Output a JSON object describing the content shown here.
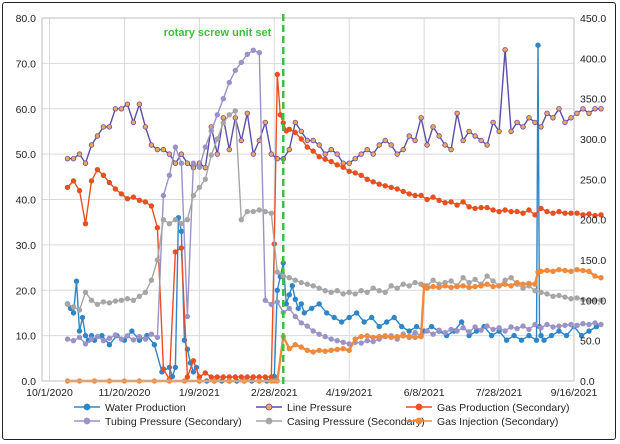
{
  "chart_data": {
    "type": "line",
    "title": "",
    "xlabel": "",
    "ylabel_left": "",
    "ylabel_right": "",
    "ylim_left": [
      0,
      80
    ],
    "ylim_right": [
      0,
      450
    ],
    "xlim_days": [
      -5,
      350
    ],
    "x_epoch": "10/1/2020",
    "y_ticks_left": [
      "0.0",
      "10.0",
      "20.0",
      "30.0",
      "40.0",
      "50.0",
      "60.0",
      "70.0",
      "80.0"
    ],
    "y_ticks_right": [
      "0.0",
      "50.0",
      "100.0",
      "150.0",
      "200.0",
      "250.0",
      "300.0",
      "350.0",
      "400.0",
      "450.0"
    ],
    "x_ticks": [
      {
        "label": "10/1/2020",
        "day": 0
      },
      {
        "label": "11/20/2020",
        "day": 50
      },
      {
        "label": "1/9/2021",
        "day": 100
      },
      {
        "label": "2/28/2021",
        "day": 150
      },
      {
        "label": "4/19/2021",
        "day": 200
      },
      {
        "label": "6/8/2021",
        "day": 250
      },
      {
        "label": "7/28/2021",
        "day": 300
      },
      {
        "label": "9/16/2021",
        "day": 350
      }
    ],
    "annotation": {
      "text": "rotary screw unit set",
      "day": 156
    },
    "series": [
      {
        "name": "Water Production",
        "axis": "left",
        "color": "#2e86c8",
        "marker": "circle",
        "x": [
          12,
          14,
          16,
          18,
          20,
          22,
          24,
          26,
          28,
          30,
          35,
          40,
          45,
          50,
          55,
          60,
          65,
          70,
          75,
          80,
          82,
          84,
          86,
          88,
          90,
          92,
          94,
          96,
          98,
          100,
          105,
          110,
          115,
          120,
          125,
          130,
          135,
          140,
          145,
          150,
          152,
          154,
          156,
          158,
          160,
          162,
          164,
          166,
          168,
          170,
          175,
          180,
          185,
          190,
          195,
          200,
          205,
          210,
          215,
          220,
          225,
          230,
          235,
          240,
          245,
          250,
          255,
          260,
          265,
          270,
          275,
          280,
          285,
          290,
          295,
          300,
          305,
          310,
          315,
          320,
          325,
          326,
          327,
          328,
          330,
          335,
          340,
          345,
          350,
          355,
          360,
          365
        ],
        "y": [
          17,
          16,
          15,
          22,
          11,
          14,
          10,
          9,
          10,
          9,
          10,
          8,
          10,
          9,
          11,
          9,
          10,
          8,
          2,
          3,
          1,
          3,
          36,
          33,
          9,
          7,
          4,
          2,
          3,
          0,
          0,
          0,
          0,
          0,
          0,
          0,
          0,
          0,
          0,
          1,
          20,
          23,
          26,
          17,
          19,
          21,
          18,
          16,
          17,
          15,
          16,
          17,
          15,
          14,
          13,
          14,
          15,
          13,
          14,
          12,
          13,
          14,
          12,
          11,
          12,
          11,
          12,
          11,
          10,
          11,
          13,
          10,
          11,
          12,
          10,
          11,
          9,
          10,
          9,
          10,
          9,
          74,
          12,
          10,
          9,
          10,
          11,
          10,
          12,
          10,
          11,
          12
        ]
      },
      {
        "name": "Line Pressure",
        "axis": "left",
        "color": "#5a4fa8",
        "marker": "circle-orange",
        "x": [
          12,
          16,
          20,
          24,
          28,
          32,
          36,
          40,
          44,
          48,
          52,
          56,
          60,
          64,
          68,
          72,
          76,
          80,
          84,
          88,
          92,
          96,
          100,
          104,
          108,
          112,
          116,
          120,
          124,
          128,
          132,
          136,
          140,
          144,
          148,
          152,
          156,
          160,
          164,
          168,
          172,
          176,
          180,
          184,
          188,
          192,
          196,
          200,
          204,
          208,
          212,
          216,
          220,
          224,
          228,
          232,
          236,
          240,
          244,
          248,
          252,
          256,
          260,
          264,
          268,
          272,
          276,
          280,
          284,
          288,
          292,
          296,
          300,
          304,
          308,
          312,
          316,
          320,
          324,
          328,
          332,
          336,
          340,
          344,
          348,
          352,
          356,
          360,
          364,
          368
        ],
        "y": [
          49,
          49,
          50,
          48,
          52,
          54,
          56,
          56,
          60,
          60,
          61,
          57,
          61,
          56,
          52,
          51,
          51,
          50,
          48,
          50,
          48,
          47,
          48,
          47,
          56,
          50,
          58,
          51,
          58,
          53,
          59,
          50,
          53,
          57,
          50,
          49,
          49,
          51,
          57,
          55,
          53,
          53,
          52,
          50,
          51,
          50,
          48,
          48,
          49,
          50,
          51,
          50,
          52,
          53,
          52,
          50,
          51,
          54,
          53,
          58,
          52,
          56,
          54,
          52,
          51,
          59,
          53,
          55,
          54,
          53,
          52,
          57,
          55,
          73,
          55,
          57,
          56,
          58,
          57,
          56,
          59,
          58,
          60,
          57,
          58,
          59,
          60,
          59,
          60,
          60
        ]
      },
      {
        "name": "Gas Production (Secondary)",
        "axis": "right",
        "color": "#e84f22",
        "marker": "circle",
        "x": [
          12,
          16,
          20,
          24,
          28,
          32,
          36,
          40,
          44,
          48,
          52,
          56,
          60,
          64,
          68,
          72,
          76,
          80,
          84,
          88,
          92,
          96,
          100,
          104,
          108,
          112,
          116,
          120,
          124,
          128,
          132,
          136,
          140,
          144,
          148,
          150,
          152,
          154,
          156,
          158,
          160,
          164,
          168,
          172,
          176,
          180,
          184,
          188,
          192,
          196,
          200,
          204,
          208,
          212,
          216,
          220,
          224,
          228,
          232,
          236,
          240,
          244,
          248,
          252,
          256,
          260,
          264,
          268,
          272,
          276,
          280,
          284,
          288,
          292,
          296,
          300,
          304,
          308,
          312,
          316,
          320,
          324,
          328,
          332,
          336,
          340,
          344,
          348,
          352,
          356,
          360,
          364,
          368
        ],
        "y": [
          240,
          248,
          236,
          195,
          248,
          262,
          255,
          246,
          238,
          232,
          226,
          228,
          224,
          222,
          217,
          190,
          15,
          2,
          160,
          165,
          5,
          25,
          5,
          10,
          5,
          5,
          5,
          5,
          5,
          5,
          5,
          5,
          5,
          5,
          5,
          170,
          380,
          330,
          320,
          310,
          312,
          308,
          300,
          290,
          285,
          278,
          275,
          272,
          268,
          265,
          260,
          258,
          255,
          250,
          247,
          244,
          242,
          240,
          238,
          235,
          232,
          230,
          230,
          225,
          228,
          224,
          221,
          222,
          218,
          222,
          216,
          214,
          215,
          215,
          212,
          210,
          212,
          210,
          210,
          208,
          212,
          206,
          214,
          210,
          208,
          210,
          208,
          208,
          208,
          206,
          207,
          205,
          206
        ]
      },
      {
        "name": "Tubing Pressure (Secondary)",
        "axis": "right",
        "color": "#9a93c7",
        "marker": "circle",
        "x": [
          12,
          16,
          20,
          24,
          28,
          32,
          36,
          40,
          44,
          48,
          52,
          56,
          60,
          64,
          68,
          72,
          76,
          80,
          84,
          88,
          92,
          96,
          100,
          104,
          108,
          112,
          116,
          120,
          124,
          128,
          132,
          136,
          140,
          144,
          148,
          152,
          156,
          160,
          164,
          168,
          172,
          176,
          180,
          184,
          188,
          192,
          196,
          200,
          204,
          208,
          212,
          216,
          220,
          224,
          228,
          232,
          236,
          240,
          244,
          248,
          252,
          256,
          260,
          264,
          268,
          272,
          276,
          280,
          284,
          288,
          292,
          296,
          300,
          304,
          308,
          312,
          316,
          320,
          324,
          328,
          332,
          336,
          340,
          344,
          348,
          352,
          356,
          360,
          364,
          368
        ],
        "y": [
          52,
          50,
          54,
          46,
          52,
          55,
          50,
          53,
          57,
          52,
          56,
          51,
          55,
          52,
          58,
          54,
          230,
          255,
          290,
          270,
          80,
          270,
          265,
          290,
          310,
          330,
          350,
          370,
          385,
          395,
          405,
          410,
          407,
          100,
          95,
          98,
          85,
          90,
          80,
          72,
          68,
          62,
          58,
          55,
          52,
          50,
          48,
          46,
          48,
          47,
          50,
          49,
          52,
          55,
          56,
          52,
          58,
          54,
          60,
          56,
          62,
          58,
          63,
          60,
          64,
          62,
          66,
          61,
          67,
          63,
          68,
          64,
          66,
          62,
          67,
          65,
          68,
          64,
          70,
          66,
          70,
          67,
          68,
          69,
          70,
          69,
          71,
          70,
          72,
          70
        ]
      },
      {
        "name": "Casing Pressure (Secondary)",
        "axis": "right",
        "color": "#a6a6a6",
        "marker": "circle",
        "x": [
          12,
          16,
          20,
          24,
          28,
          32,
          36,
          40,
          44,
          48,
          52,
          56,
          60,
          64,
          68,
          72,
          76,
          80,
          84,
          88,
          92,
          96,
          100,
          104,
          108,
          112,
          116,
          120,
          124,
          128,
          132,
          136,
          140,
          144,
          148,
          152,
          156,
          160,
          164,
          168,
          172,
          176,
          180,
          184,
          188,
          192,
          196,
          200,
          204,
          208,
          212,
          216,
          220,
          224,
          228,
          232,
          236,
          240,
          244,
          248,
          252,
          256,
          260,
          264,
          268,
          272,
          276,
          280,
          284,
          288,
          292,
          296,
          300,
          304,
          308,
          312,
          316,
          320,
          324,
          328,
          332,
          336,
          340,
          344,
          348,
          352,
          356,
          360,
          364,
          368
        ],
        "y": [
          95,
          92,
          88,
          110,
          100,
          95,
          98,
          97,
          99,
          100,
          102,
          100,
          105,
          110,
          125,
          150,
          200,
          195,
          200,
          195,
          200,
          230,
          240,
          250,
          280,
          300,
          320,
          330,
          335,
          200,
          210,
          210,
          212,
          210,
          208,
          135,
          130,
          128,
          125,
          122,
          120,
          118,
          115,
          112,
          110,
          112,
          108,
          110,
          108,
          112,
          110,
          115,
          112,
          110,
          118,
          115,
          120,
          118,
          122,
          120,
          118,
          125,
          120,
          122,
          124,
          118,
          128,
          122,
          126,
          120,
          130,
          124,
          118,
          125,
          128,
          120,
          115,
          118,
          112,
          110,
          108,
          105,
          106,
          104,
          102,
          103,
          101,
          100,
          100,
          100
        ]
      },
      {
        "name": "Gas Injection (Secondary)",
        "axis": "right",
        "color": "#f08a3c",
        "marker": "circle",
        "x": [
          12,
          20,
          30,
          40,
          50,
          60,
          70,
          80,
          90,
          100,
          110,
          120,
          130,
          140,
          148,
          150,
          152,
          156,
          160,
          164,
          168,
          172,
          176,
          180,
          184,
          188,
          192,
          196,
          200,
          204,
          208,
          212,
          216,
          220,
          224,
          228,
          232,
          236,
          240,
          244,
          248,
          250,
          252,
          256,
          260,
          264,
          268,
          272,
          276,
          280,
          284,
          288,
          292,
          296,
          300,
          304,
          308,
          312,
          316,
          320,
          324,
          326,
          328,
          332,
          336,
          340,
          344,
          348,
          352,
          356,
          360,
          364,
          368
        ],
        "y": [
          0,
          0,
          0,
          0,
          0,
          0,
          0,
          0,
          0,
          0,
          0,
          0,
          0,
          0,
          0,
          0,
          0,
          55,
          40,
          45,
          42,
          38,
          36,
          38,
          37,
          38,
          39,
          40,
          38,
          52,
          55,
          56,
          54,
          55,
          56,
          54,
          55,
          56,
          55,
          54,
          55,
          118,
          115,
          117,
          116,
          118,
          116,
          117,
          118,
          116,
          117,
          118,
          120,
          117,
          118,
          120,
          118,
          122,
          120,
          121,
          120,
          135,
          136,
          137,
          136,
          138,
          137,
          136,
          138,
          137,
          136,
          130,
          128
        ]
      }
    ]
  }
}
